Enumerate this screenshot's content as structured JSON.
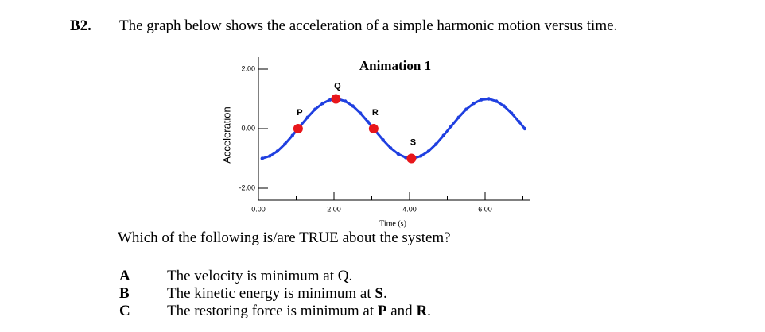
{
  "question": {
    "number": "B2.",
    "text": "The graph below shows the acceleration of a simple harmonic motion versus time.",
    "prompt": "Which of the following is/are TRUE about the system?",
    "options": [
      {
        "letter": "A",
        "parts": [
          "The velocity is minimum at Q."
        ]
      },
      {
        "letter": "B",
        "parts": [
          "The kinetic energy is minimum at ",
          "S",
          "."
        ]
      },
      {
        "letter": "C",
        "parts": [
          "The restoring force is minimum at ",
          "P",
          " and ",
          "R",
          "."
        ]
      }
    ]
  },
  "chart_data": {
    "type": "line",
    "title": "Animation 1",
    "x_label": "Time (s)",
    "y_label": "Acceleration",
    "xlim": [
      0,
      7.2
    ],
    "ylim": [
      -2.4,
      2.4
    ],
    "xticks": [
      {
        "value": 0,
        "label": "0.00"
      },
      {
        "value": 2,
        "label": "2.00"
      },
      {
        "value": 4,
        "label": "4.00"
      },
      {
        "value": 6,
        "label": "6.00"
      }
    ],
    "xminor": [
      1,
      3,
      5,
      7
    ],
    "yticks": [
      {
        "value": -2,
        "label": "-2.00"
      },
      {
        "value": 0,
        "label": "0.00"
      },
      {
        "value": 2,
        "label": "2.00"
      }
    ],
    "series": [
      {
        "name": "Acceleration",
        "color": "#1f3fe0",
        "x": [
          0.1,
          0.3,
          0.5,
          0.7,
          0.9,
          1.1,
          1.3,
          1.5,
          1.7,
          1.9,
          2.1,
          2.3,
          2.5,
          2.7,
          2.9,
          3.1,
          3.3,
          3.5,
          3.7,
          3.9,
          4.1,
          4.3,
          4.5,
          4.7,
          4.9,
          5.1,
          5.3,
          5.5,
          5.7,
          5.9,
          6.1,
          6.3,
          6.5,
          6.7,
          6.9,
          7.05
        ],
        "values": [
          -1.0,
          -0.92,
          -0.76,
          -0.52,
          -0.23,
          0.08,
          0.38,
          0.65,
          0.85,
          0.97,
          1.0,
          0.92,
          0.76,
          0.52,
          0.23,
          -0.08,
          -0.38,
          -0.65,
          -0.85,
          -0.97,
          -1.0,
          -0.92,
          -0.76,
          -0.52,
          -0.23,
          0.08,
          0.38,
          0.65,
          0.85,
          0.97,
          1.0,
          0.92,
          0.76,
          0.52,
          0.23,
          0.0
        ]
      }
    ],
    "points": {
      "color": "#e8161b",
      "labels": [
        "P",
        "Q",
        "R",
        "S"
      ],
      "x": [
        1.05,
        2.05,
        3.05,
        4.05
      ],
      "values": [
        0,
        1,
        0,
        -1
      ]
    }
  }
}
